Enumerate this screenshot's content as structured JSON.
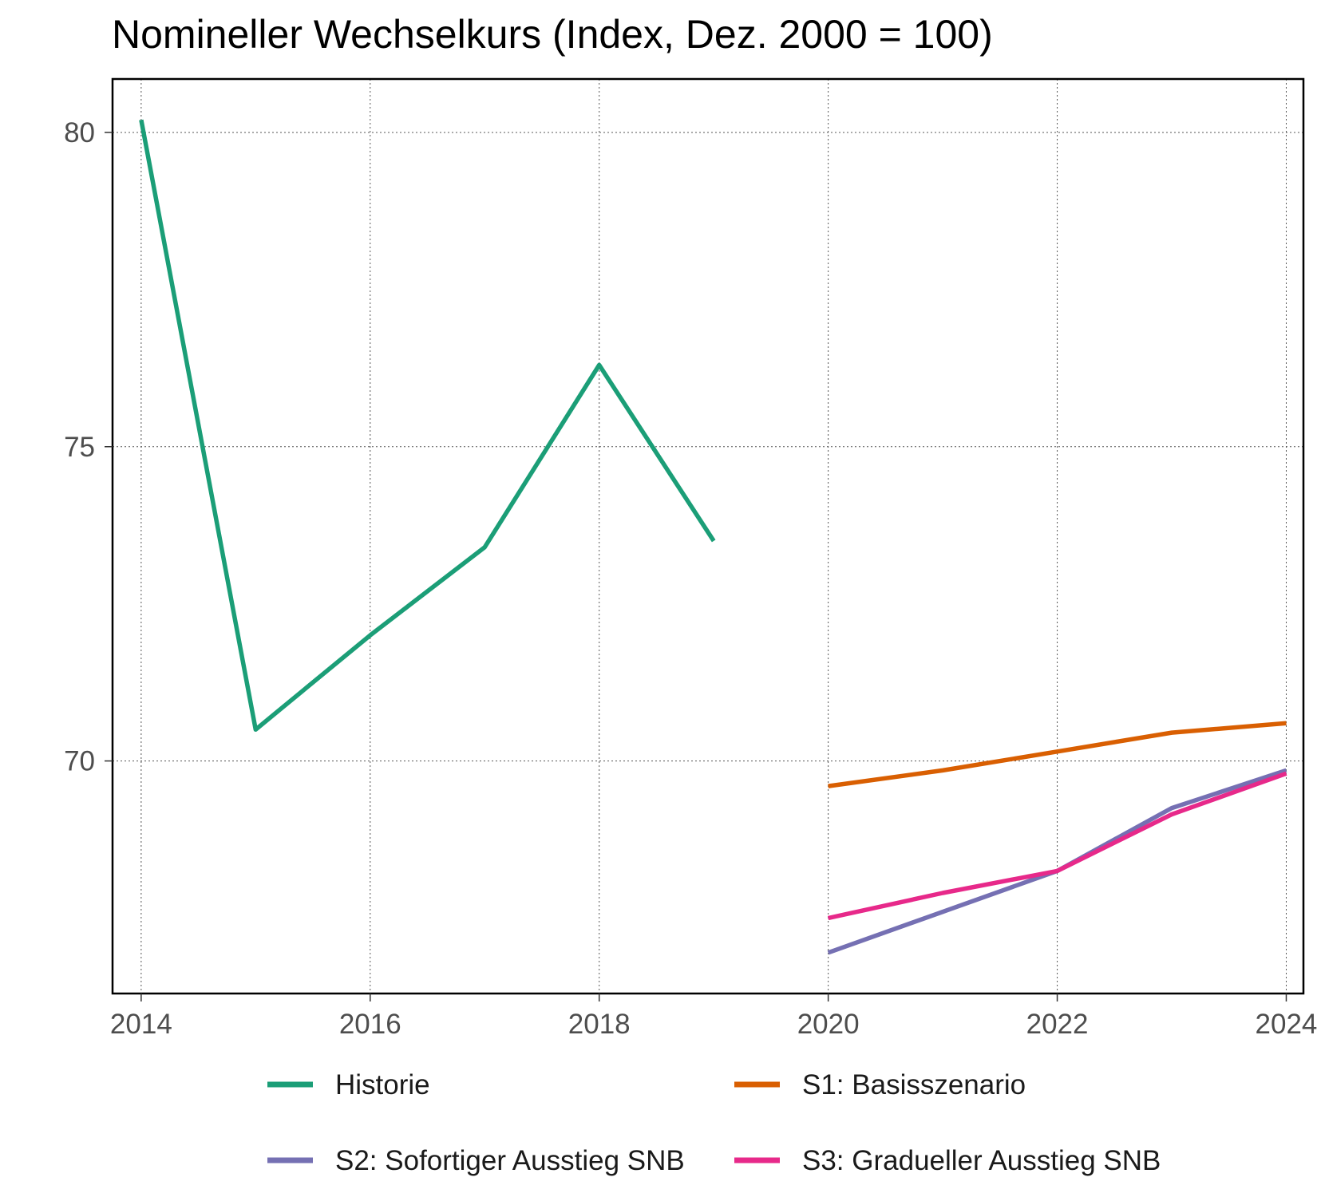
{
  "chart_data": {
    "type": "line",
    "title": "Nomineller Wechselkurs (Index, Dez. 2000 = 100)",
    "xlabel": "",
    "ylabel": "",
    "xlim": [
      2013.75,
      2024.15
    ],
    "ylim": [
      66.3,
      80.85
    ],
    "x_ticks": [
      2014,
      2016,
      2018,
      2020,
      2022,
      2024
    ],
    "y_ticks": [
      70,
      75,
      80
    ],
    "grid": true,
    "legend_position": "bottom",
    "series": [
      {
        "name": "Historie",
        "color": "#1b9e77",
        "points": [
          {
            "x": 2014,
            "y": 80.2
          },
          {
            "x": 2015,
            "y": 70.5
          },
          {
            "x": 2016,
            "y": 72.0
          },
          {
            "x": 2017,
            "y": 73.4
          },
          {
            "x": 2018,
            "y": 76.3
          },
          {
            "x": 2019,
            "y": 73.5
          }
        ]
      },
      {
        "name": "S1: Basisszenario",
        "color": "#d95f02",
        "points": [
          {
            "x": 2020,
            "y": 69.6
          },
          {
            "x": 2021,
            "y": 69.85
          },
          {
            "x": 2022,
            "y": 70.15
          },
          {
            "x": 2023,
            "y": 70.45
          },
          {
            "x": 2024,
            "y": 70.6
          }
        ]
      },
      {
        "name": "S2: Sofortiger Ausstieg SNB",
        "color": "#7570b3",
        "points": [
          {
            "x": 2020,
            "y": 66.95
          },
          {
            "x": 2021,
            "y": 67.6
          },
          {
            "x": 2022,
            "y": 68.25
          },
          {
            "x": 2023,
            "y": 69.25
          },
          {
            "x": 2024,
            "y": 69.85
          }
        ]
      },
      {
        "name": "S3: Gradueller Ausstieg SNB",
        "color": "#e7298a",
        "points": [
          {
            "x": 2020,
            "y": 67.5
          },
          {
            "x": 2021,
            "y": 67.9
          },
          {
            "x": 2022,
            "y": 68.25
          },
          {
            "x": 2023,
            "y": 69.15
          },
          {
            "x": 2024,
            "y": 69.8
          }
        ]
      }
    ]
  }
}
